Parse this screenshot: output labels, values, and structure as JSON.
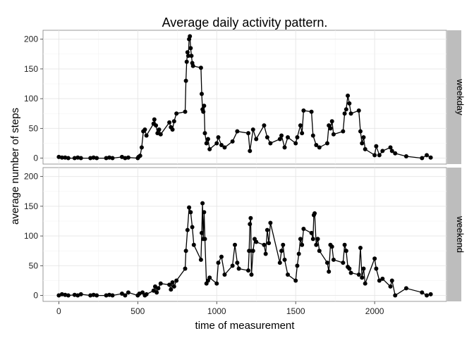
{
  "chart_data": {
    "type": "line",
    "title": "Average daily activity pattern.",
    "xlabel": "time of measurement",
    "ylabel": "average number of steps",
    "xlim": [
      -100,
      2455
    ],
    "ylim": [
      -10,
      215
    ],
    "x_ticks": [
      0,
      500,
      1000,
      1500,
      2000
    ],
    "x_tick_labels": [
      "0",
      "500",
      "1000",
      "1500",
      "2000"
    ],
    "y_ticks": [
      0,
      50,
      100,
      150,
      200
    ],
    "y_tick_labels": [
      "0",
      "50",
      "100",
      "150",
      "200"
    ],
    "grid": true,
    "line_color": "#000000",
    "point_color": "#000000",
    "panel_background": "#ffffff",
    "strip_background": "#bdbdbd",
    "panels": [
      {
        "label": "weekday",
        "series": [
          {
            "x": [
              0,
              20,
              40,
              60,
              100,
              120,
              140,
              200,
              220,
              240,
              300,
              320,
              340,
              400,
              420,
              440,
              500,
              505,
              515,
              525,
              535,
              545,
              555,
              600,
              605,
              615,
              625,
              635,
              645,
              700,
              710,
              720,
              730,
              745,
              800,
              805,
              810,
              815,
              820,
              825,
              830,
              835,
              840,
              845,
              850,
              900,
              905,
              910,
              915,
              920,
              925,
              935,
              945,
              955,
              1000,
              1010,
              1030,
              1050,
              1100,
              1130,
              1200,
              1210,
              1230,
              1250,
              1300,
              1320,
              1340,
              1400,
              1410,
              1430,
              1450,
              1500,
              1510,
              1530,
              1540,
              1550,
              1600,
              1610,
              1630,
              1650,
              1700,
              1710,
              1720,
              1730,
              1740,
              1800,
              1810,
              1820,
              1830,
              1840,
              1850,
              1900,
              1910,
              1920,
              1930,
              1940,
              2000,
              2010,
              2030,
              2050,
              2100,
              2110,
              2130,
              2200,
              2300,
              2330,
              2355
            ],
            "y": [
              2,
              1,
              1,
              0,
              0,
              1,
              0,
              0,
              1,
              0,
              0,
              1,
              0,
              2,
              0,
              1,
              0,
              2,
              4,
              18,
              45,
              48,
              38,
              58,
              65,
              55,
              42,
              48,
              40,
              60,
              52,
              48,
              62,
              75,
              78,
              130,
              162,
              178,
              172,
              200,
              205,
              185,
              172,
              160,
              155,
              152,
              108,
              82,
              78,
              88,
              42,
              25,
              32,
              15,
              25,
              35,
              22,
              18,
              28,
              45,
              42,
              12,
              48,
              32,
              55,
              35,
              25,
              32,
              38,
              18,
              35,
              25,
              35,
              55,
              42,
              80,
              78,
              38,
              22,
              18,
              25,
              55,
              50,
              62,
              40,
              45,
              75,
              82,
              105,
              92,
              75,
              80,
              45,
              25,
              35,
              15,
              5,
              20,
              5,
              12,
              18,
              12,
              8,
              3,
              0,
              5,
              1
            ]
          }
        ]
      },
      {
        "label": "weekend",
        "series": [
          {
            "x": [
              0,
              20,
              40,
              60,
              100,
              120,
              140,
              200,
              220,
              240,
              300,
              320,
              340,
              400,
              420,
              440,
              500,
              510,
              530,
              545,
              555,
              600,
              610,
              620,
              630,
              645,
              700,
              710,
              720,
              730,
              745,
              800,
              805,
              815,
              825,
              835,
              845,
              855,
              900,
              905,
              910,
              915,
              920,
              925,
              935,
              945,
              955,
              1000,
              1010,
              1030,
              1050,
              1100,
              1115,
              1130,
              1140,
              1200,
              1205,
              1210,
              1215,
              1220,
              1230,
              1240,
              1250,
              1300,
              1310,
              1320,
              1330,
              1340,
              1400,
              1410,
              1420,
              1430,
              1450,
              1500,
              1510,
              1520,
              1530,
              1540,
              1550,
              1600,
              1610,
              1615,
              1620,
              1630,
              1640,
              1650,
              1700,
              1710,
              1720,
              1730,
              1740,
              1800,
              1810,
              1820,
              1830,
              1840,
              1850,
              1900,
              1910,
              1920,
              1930,
              1940,
              2000,
              2010,
              2030,
              2050,
              2100,
              2110,
              2130,
              2200,
              2300,
              2330,
              2355
            ],
            "y": [
              0,
              2,
              1,
              0,
              1,
              0,
              2,
              0,
              1,
              0,
              0,
              1,
              0,
              3,
              0,
              5,
              0,
              3,
              5,
              0,
              2,
              8,
              15,
              5,
              12,
              20,
              18,
              10,
              22,
              15,
              25,
              45,
              75,
              110,
              148,
              140,
              115,
              85,
              60,
              105,
              155,
              95,
              140,
              95,
              20,
              25,
              30,
              20,
              55,
              65,
              35,
              50,
              85,
              55,
              45,
              42,
              75,
              120,
              130,
              35,
              75,
              95,
              90,
              85,
              70,
              110,
              88,
              122,
              55,
              75,
              85,
              60,
              35,
              25,
              50,
              70,
              95,
              85,
              112,
              105,
              95,
              135,
              138,
              85,
              95,
              75,
              55,
              40,
              85,
              82,
              60,
              55,
              85,
              75,
              48,
              45,
              38,
              35,
              80,
              30,
              45,
              20,
              62,
              45,
              25,
              28,
              15,
              25,
              0,
              12,
              5,
              0,
              2
            ]
          }
        ]
      }
    ]
  }
}
